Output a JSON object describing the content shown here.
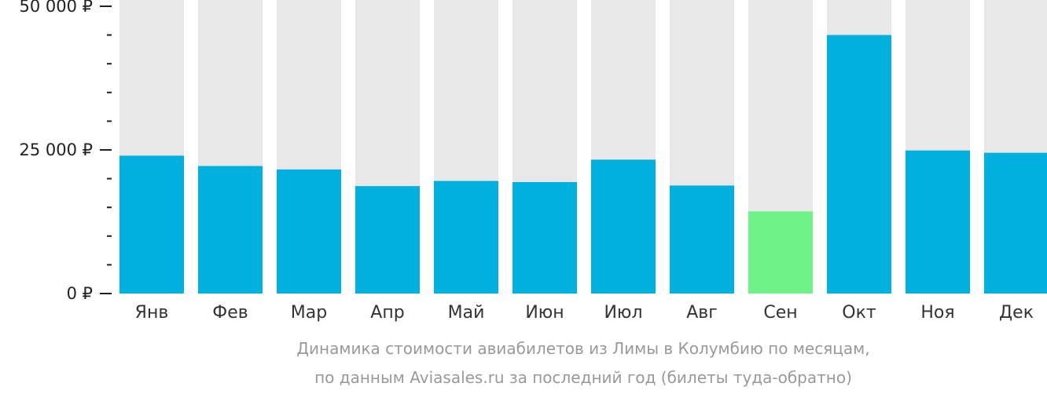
{
  "chart_data": {
    "type": "bar",
    "categories": [
      "Янв",
      "Фев",
      "Мар",
      "Апр",
      "Май",
      "Июн",
      "Июл",
      "Авг",
      "Сен",
      "Окт",
      "Ноя",
      "Дек"
    ],
    "values": [
      24000,
      22200,
      21600,
      18700,
      19600,
      19400,
      23300,
      18800,
      14300,
      45000,
      24900,
      24500
    ],
    "highlight_category": "Сен",
    "ylim": [
      0,
      50000
    ],
    "yticks": [
      {
        "value": 0,
        "label": "0 ₽"
      },
      {
        "value": 25000,
        "label": "25 000 ₽"
      },
      {
        "value": 50000,
        "label": "50 000 ₽"
      }
    ],
    "minor_tick_step": 5000,
    "colors": {
      "bar": "#02b0de",
      "highlight": "#6ff287",
      "background_bar": "#e8e8e8",
      "axis": "#222222"
    },
    "caption": [
      "Динамика стоимости авиабилетов из Лимы в Колумбию по месяцам,",
      "по данным Aviasales.ru за последний год (билеты туда-обратно)"
    ]
  }
}
